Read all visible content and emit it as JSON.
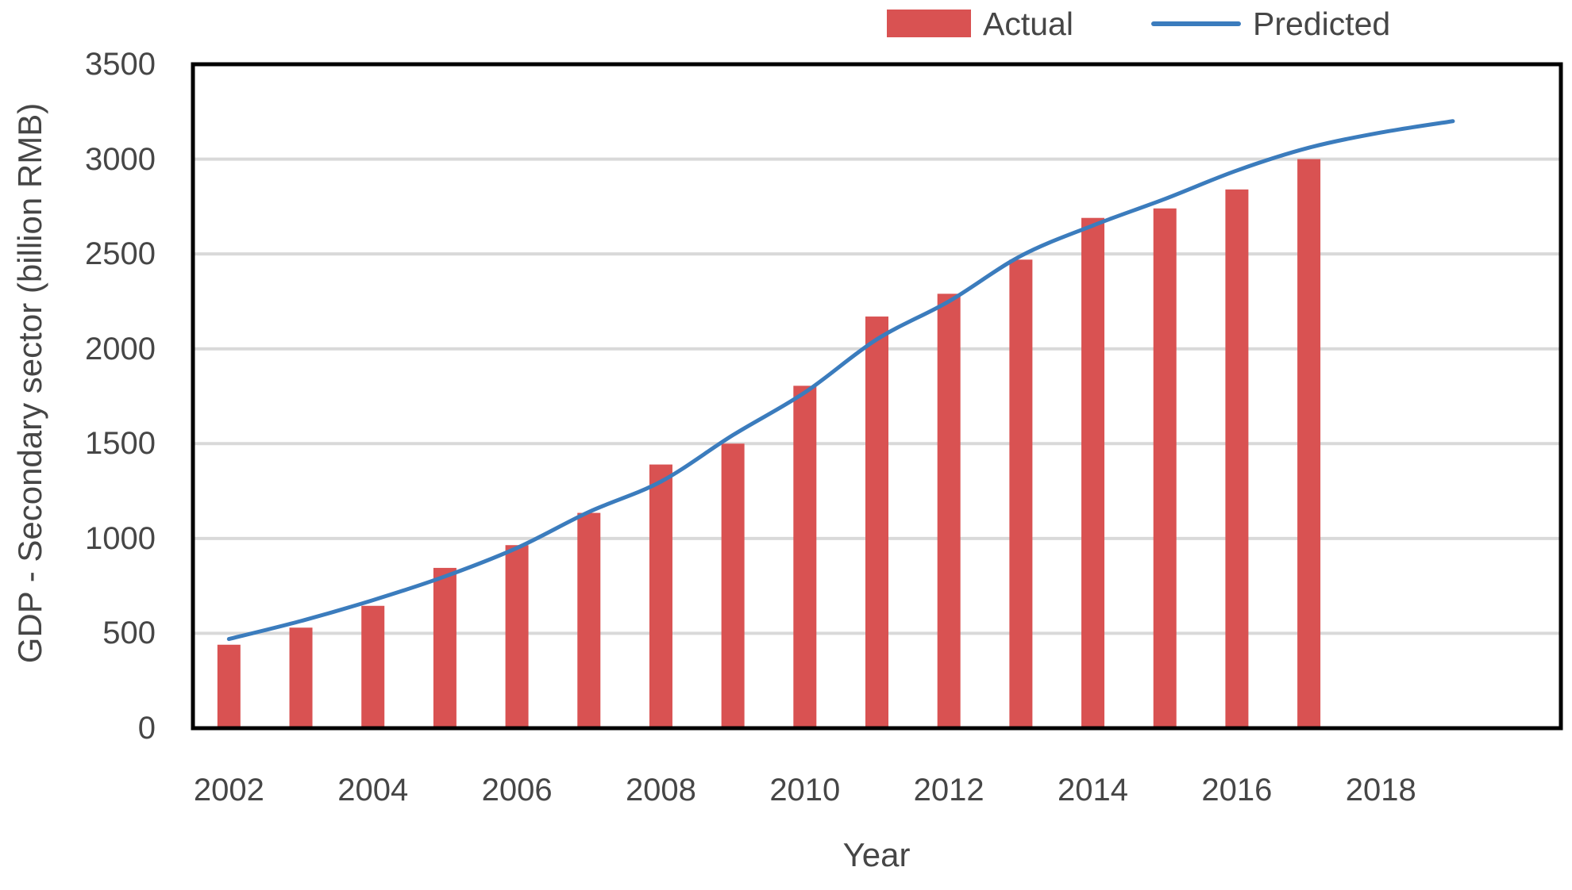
{
  "legend": {
    "actual_label": "Actual",
    "predicted_label": "Predicted"
  },
  "y_axis": {
    "title": "GDP - Secondary sector (billion RMB)",
    "tick_labels": [
      "0",
      "500",
      "1000",
      "1500",
      "2000",
      "2500",
      "3000",
      "3500"
    ]
  },
  "x_axis": {
    "title": "Year",
    "tick_labels": [
      "2002",
      "2004",
      "2006",
      "2008",
      "2010",
      "2012",
      "2014",
      "2016",
      "2018"
    ]
  },
  "colors": {
    "bar": "#d95252",
    "line": "#3b7cbd",
    "grid": "#d9d9d9",
    "frame": "#000000",
    "text": "#464646"
  },
  "chart_data": {
    "type": "bar",
    "subtype": "combo-bar-line",
    "title": "",
    "xlabel": "Year",
    "ylabel": "GDP - Secondary sector (billion RMB)",
    "xlim": [
      2001.5,
      2020.5
    ],
    "ylim": [
      0,
      3500
    ],
    "y_ticks": [
      0,
      500,
      1000,
      1500,
      2000,
      2500,
      3000,
      3500
    ],
    "x_ticks": [
      2002,
      2004,
      2006,
      2008,
      2010,
      2012,
      2014,
      2016,
      2018
    ],
    "grid": "horizontal",
    "legend_position": "top-right",
    "series": [
      {
        "name": "Actual",
        "render": "bar",
        "x": [
          2002,
          2003,
          2004,
          2005,
          2006,
          2007,
          2008,
          2009,
          2010,
          2011,
          2012,
          2013,
          2014,
          2015,
          2016,
          2017
        ],
        "values": [
          440,
          530,
          645,
          845,
          965,
          1135,
          1390,
          1500,
          1805,
          2170,
          2290,
          2470,
          2690,
          2740,
          2840,
          3000
        ]
      },
      {
        "name": "Predicted",
        "render": "line",
        "x": [
          2002,
          2003,
          2004,
          2005,
          2006,
          2007,
          2008,
          2009,
          2010,
          2011,
          2012,
          2013,
          2014,
          2015,
          2016,
          2017,
          2018,
          2019
        ],
        "values": [
          470,
          565,
          675,
          800,
          950,
          1140,
          1300,
          1545,
          1770,
          2050,
          2250,
          2490,
          2650,
          2790,
          2940,
          3060,
          3140,
          3200
        ]
      }
    ]
  }
}
